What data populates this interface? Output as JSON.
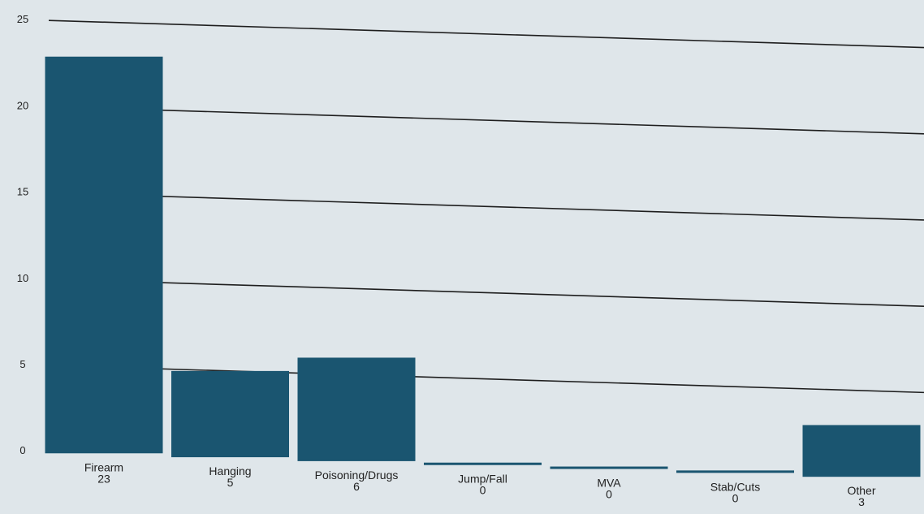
{
  "chart_data": {
    "type": "bar",
    "title": "",
    "xlabel": "",
    "ylabel": "",
    "categories": [
      "Firearm",
      "Hanging",
      "Poisoning/Drugs",
      "Jump/Fall",
      "MVA",
      "Stab/Cuts",
      "Other"
    ],
    "values": [
      23,
      5,
      6,
      0,
      0,
      0,
      3
    ],
    "data_labels": [
      "23",
      "5",
      "6",
      "0",
      "0",
      "0",
      "3"
    ],
    "ylim": [
      0,
      25
    ],
    "yticks": [
      0,
      5,
      10,
      15,
      20,
      25
    ],
    "ytick_labels": [
      "0",
      "5",
      "10",
      "15",
      "20",
      "25"
    ],
    "grid": true,
    "legend": "none",
    "bar_color": "#1a5570",
    "background_color": "#dfe6ea",
    "grid_color": "#1e1e1e"
  }
}
